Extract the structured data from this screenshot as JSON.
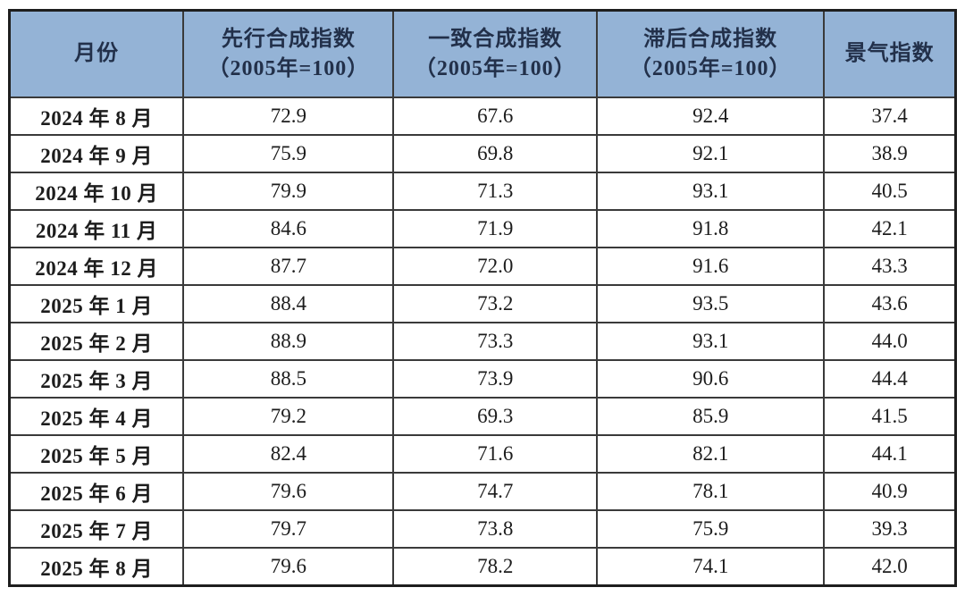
{
  "chart_data": {
    "type": "table",
    "title": "",
    "columns": [
      {
        "title": "月份",
        "subtitle": ""
      },
      {
        "title": "先行合成指数",
        "subtitle": "（2005年=100）"
      },
      {
        "title": "一致合成指数",
        "subtitle": "（2005年=100）"
      },
      {
        "title": "滞后合成指数",
        "subtitle": "（2005年=100）"
      },
      {
        "title": "景气指数",
        "subtitle": ""
      }
    ],
    "rows": [
      [
        "2024 年 8 月",
        "72.9",
        "67.6",
        "92.4",
        "37.4"
      ],
      [
        "2024 年 9 月",
        "75.9",
        "69.8",
        "92.1",
        "38.9"
      ],
      [
        "2024 年 10 月",
        "79.9",
        "71.3",
        "93.1",
        "40.5"
      ],
      [
        "2024 年 11 月",
        "84.6",
        "71.9",
        "91.8",
        "42.1"
      ],
      [
        "2024 年 12 月",
        "87.7",
        "72.0",
        "91.6",
        "43.3"
      ],
      [
        "2025 年 1 月",
        "88.4",
        "73.2",
        "93.5",
        "43.6"
      ],
      [
        "2025 年 2 月",
        "88.9",
        "73.3",
        "93.1",
        "44.0"
      ],
      [
        "2025 年 3 月",
        "88.5",
        "73.9",
        "90.6",
        "44.4"
      ],
      [
        "2025 年 4 月",
        "79.2",
        "69.3",
        "85.9",
        "41.5"
      ],
      [
        "2025 年 5 月",
        "82.4",
        "71.6",
        "82.1",
        "44.1"
      ],
      [
        "2025 年 6 月",
        "79.6",
        "74.7",
        "78.1",
        "40.9"
      ],
      [
        "2025 年 7 月",
        "79.7",
        "73.8",
        "75.9",
        "39.3"
      ],
      [
        "2025 年 8 月",
        "79.6",
        "78.2",
        "74.1",
        "42.0"
      ]
    ],
    "layout": {
      "legend": "none",
      "grid": true,
      "header_background": "#94b3d6",
      "outer_border": "#1e1e1e",
      "inner_border": "#3a3a3a"
    }
  }
}
